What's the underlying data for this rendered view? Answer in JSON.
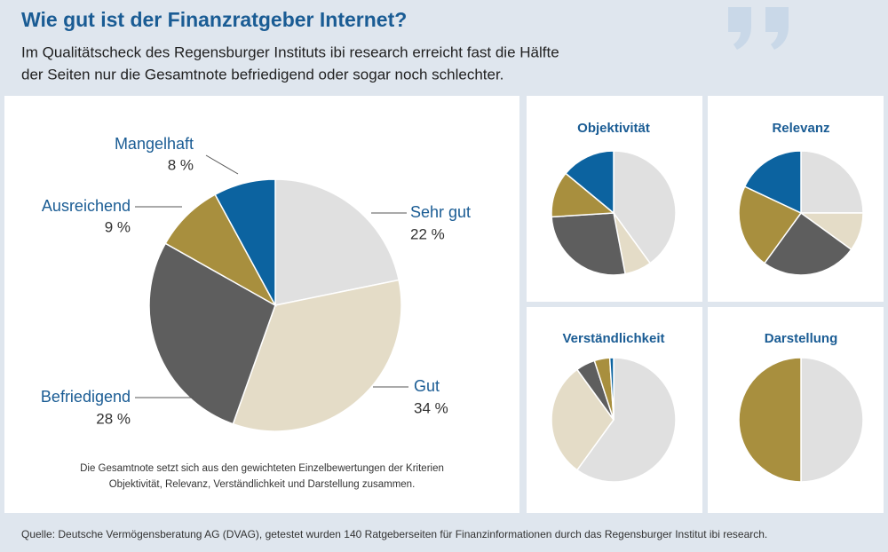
{
  "header": {
    "title": "Wie gut ist der Finanzratgeber Internet?",
    "subtitle_lines": [
      "Im Qualitätscheck des Regensburger Instituts ibi research erreicht fast die Hälfte",
      "der Seiten nur die Gesamtnote befriedigend oder sogar noch schlechter."
    ]
  },
  "chart_data": [
    {
      "type": "pie",
      "categories": [
        "Sehr gut",
        "Gut",
        "Befriedigend",
        "Ausreichend",
        "Mangelhaft"
      ],
      "values": [
        22,
        34,
        28,
        9,
        8
      ],
      "value_labels": [
        "22 %",
        "34 %",
        "28 %",
        "9 %",
        "8 %"
      ],
      "colors": [
        "#e0e0e0",
        "#e4dcc7",
        "#5e5e5e",
        "#a88f3e",
        "#0c63a0"
      ]
    },
    {
      "type": "pie",
      "title": "Objektivität",
      "values": [
        40,
        7,
        27,
        12,
        14
      ],
      "colors": [
        "#e0e0e0",
        "#e4dcc7",
        "#5e5e5e",
        "#a88f3e",
        "#0c63a0"
      ]
    },
    {
      "type": "pie",
      "title": "Relevanz",
      "values": [
        25,
        10,
        25,
        22,
        18
      ],
      "colors": [
        "#e0e0e0",
        "#e4dcc7",
        "#5e5e5e",
        "#a88f3e",
        "#0c63a0"
      ]
    },
    {
      "type": "pie",
      "title": "Verständlichkeit",
      "values": [
        60,
        30,
        5,
        4,
        1
      ],
      "colors": [
        "#e0e0e0",
        "#e4dcc7",
        "#5e5e5e",
        "#a88f3e",
        "#0c63a0"
      ]
    },
    {
      "type": "pie",
      "title": "Darstellung",
      "values": [
        50,
        0,
        0,
        50,
        0
      ],
      "colors": [
        "#e0e0e0",
        "#e4dcc7",
        "#5e5e5e",
        "#a88f3e",
        "#0c63a0"
      ]
    }
  ],
  "note_lines": [
    "Die Gesamtnote setzt sich aus den gewichteten Einzelbewertungen der Kriterien",
    "Objektivität, Relevanz, Verständlichkeit und Darstellung zusammen."
  ],
  "source": "Quelle: Deutsche Vermögensberatung AG (DVAG), getestet wurden 140 Ratgeberseiten für Finanzinformationen durch das Regensburger Institut ibi research."
}
